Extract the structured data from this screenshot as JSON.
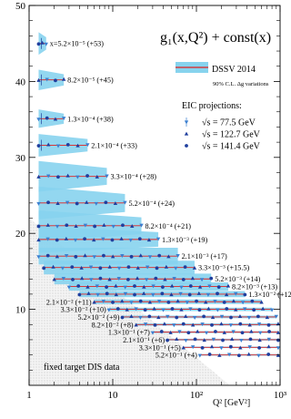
{
  "chart_data": {
    "type": "scatter",
    "title": "g₁(x,Q²) + const(x)",
    "xlabel": "Q² [GeV²]",
    "ylabel": "",
    "x_scale": "log",
    "xlim": [
      1,
      1000
    ],
    "ylim": [
      0,
      50
    ],
    "grid": false,
    "x_ticks": [
      {
        "v": 1,
        "label": "1"
      },
      {
        "v": 10,
        "label": "10"
      },
      {
        "v": 100,
        "label": "10²"
      },
      {
        "v": 1000,
        "label": "10³"
      }
    ],
    "y_ticks": [
      {
        "v": 10,
        "label": "10"
      },
      {
        "v": 20,
        "label": "20"
      },
      {
        "v": 30,
        "label": "30"
      },
      {
        "v": 40,
        "label": "40"
      },
      {
        "v": 50,
        "label": "50"
      }
    ],
    "legend": {
      "placement": "top-right",
      "dssv_label": "DSSV 2014",
      "dssv_sub": "90% C.L. Δg variations",
      "eic_title": "EIC projections:",
      "entries": [
        {
          "label": "√s = 77.5  GeV",
          "marker": "tri-down"
        },
        {
          "label": "√s = 122.7 GeV",
          "marker": "tri-up"
        },
        {
          "label": "√s = 141.4 GeV",
          "marker": "circle"
        }
      ]
    },
    "fixed_target_label": "fixed target DIS data",
    "band_color": "#87d3ee",
    "line_color": "#e02020",
    "point_color": "#1f3f9e",
    "bins": [
      {
        "label": "x=5.2×10⁻⁵ (+53)",
        "y": 45.0,
        "qmin": 1.3,
        "qmax": 1.6,
        "width": 2.2
      },
      {
        "label": "8.2×10⁻⁵ (+45)",
        "y": 40.2,
        "qmin": 1.3,
        "qmax": 2.6,
        "width": 2.0
      },
      {
        "label": "1.3×10⁻⁴ (+38)",
        "y": 35.1,
        "qmin": 1.3,
        "qmax": 2.6,
        "width": 1.8
      },
      {
        "label": "2.1×10⁻⁴ (+33)",
        "y": 31.6,
        "qmin": 1.3,
        "qmax": 5.0,
        "width": 2.2
      },
      {
        "label": "3.3×10⁻⁴ (+28)",
        "y": 27.5,
        "qmin": 1.3,
        "qmax": 8.5,
        "width": 3.0
      },
      {
        "label": "5.2×10⁻⁴ (+24)",
        "y": 24.0,
        "qmin": 1.3,
        "qmax": 14.0,
        "width": 3.2
      },
      {
        "label": "8.2×10⁻⁴ (+21)",
        "y": 21.0,
        "qmin": 1.3,
        "qmax": 22.0,
        "width": 3.0
      },
      {
        "label": "1.3×10⁻³ (+19)",
        "y": 19.2,
        "qmin": 1.3,
        "qmax": 35.0,
        "width": 2.6
      },
      {
        "label": "2.1×10⁻³ (+17)",
        "y": 17.0,
        "qmin": 1.3,
        "qmax": 60.0,
        "width": 2.2
      },
      {
        "label": "3.3×10⁻³ (+15.5)",
        "y": 15.5,
        "qmin": 1.5,
        "qmax": 95.0,
        "width": 1.8
      },
      {
        "label": "5.2×10⁻³ (+14)",
        "y": 14.0,
        "qmin": 2.0,
        "qmax": 150.0,
        "width": 1.4
      },
      {
        "label": "8.2×10⁻³ (+13)",
        "y": 13.0,
        "qmin": 3.0,
        "qmax": 240.0,
        "width": 1.1
      },
      {
        "label": "1.3×10⁻² (+12)",
        "y": 12.0,
        "qmin": 4.0,
        "qmax": 380.0,
        "width": 0.8
      },
      {
        "label": "2.1×10⁻² (+11)",
        "y": 11.0,
        "qmin": 6.0,
        "qmax": 600.0,
        "width": 0.6
      },
      {
        "label": "3.3×10⁻² (+10)",
        "y": 10.0,
        "qmin": 9.0,
        "qmax": 800.0,
        "width": 0.45
      },
      {
        "label": "5.2×10⁻² (+9)",
        "y": 9.0,
        "qmin": 13.0,
        "qmax": 900.0,
        "width": 0.35
      },
      {
        "label": "8.2×10⁻² (+8)",
        "y": 8.0,
        "qmin": 19.0,
        "qmax": 950.0,
        "width": 0.3
      },
      {
        "label": "1.3×10⁻¹ (+7)",
        "y": 7.0,
        "qmin": 30.0,
        "qmax": 950.0,
        "width": 0.25
      },
      {
        "label": "2.1×10⁻¹ (+6)",
        "y": 6.0,
        "qmin": 45.0,
        "qmax": 950.0,
        "width": 0.25
      },
      {
        "label": "3.3×10⁻¹ (+5)",
        "y": 5.0,
        "qmin": 70.0,
        "qmax": 950.0,
        "width": 0.2
      },
      {
        "label": "5.2×10⁻¹ (+4)",
        "y": 4.0,
        "qmin": 110.0,
        "qmax": 950.0,
        "width": 0.2
      }
    ]
  }
}
